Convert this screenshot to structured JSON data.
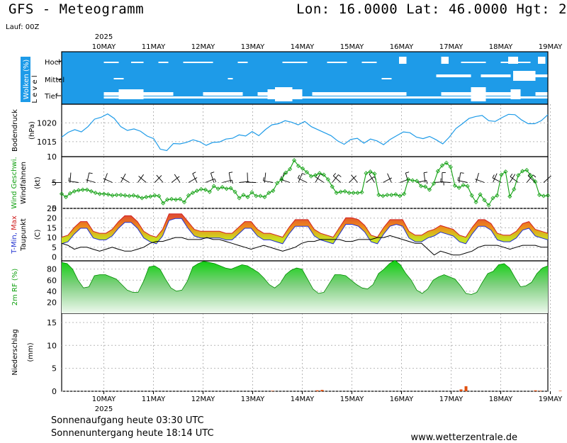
{
  "header": {
    "title": "GFS - Meteogramm",
    "coords": "Lon: 16.0000 Lat: 46.0000 Hgt: 2",
    "run": "Lauf: 00Z"
  },
  "footer": {
    "sunrise": "Sonnenaufgang heute 03:30 UTC",
    "sunset": "Sonnenuntergang heute 18:14 UTC",
    "site": "www.wetterzentrale.de"
  },
  "x_axis": {
    "year": "2025",
    "dates": [
      "10MAY",
      "11MAY",
      "12MAY",
      "13MAY",
      "14MAY",
      "15MAY",
      "16MAY",
      "17MAY",
      "18MAY",
      "19MAY"
    ]
  },
  "colors": {
    "cloud_bg": "#1e9be8",
    "pressure_line": "#1e9be8",
    "wind_line": "#10a010",
    "dewpoint_line": "#000000",
    "temp_fill_warm": "#ee8a1a",
    "temp_fill_cool": "#c8e020",
    "rh_fill": "#10d010",
    "precip_bar": "#e05010"
  },
  "chart_data": [
    {
      "type": "area",
      "panel": "clouds",
      "ylabel": "Wolken (%)",
      "level_axis_label": "L e v e l",
      "levels": [
        "Hoch",
        "Mittel",
        "Tief"
      ],
      "note": "white bands indicate cloud cover per level"
    },
    {
      "type": "line",
      "panel": "pressure",
      "ylabel": "Bodendruck (hPa)",
      "yticks": [
        1015,
        1020
      ],
      "ylim": [
        1011,
        1025
      ],
      "x": [
        0,
        3,
        6,
        9,
        12,
        15,
        18,
        21,
        24,
        27,
        30,
        33,
        36,
        39,
        42,
        45,
        48,
        51,
        54,
        57,
        60,
        63,
        66,
        69,
        72,
        75,
        78,
        81,
        84,
        87,
        90,
        93,
        96,
        99,
        102,
        105,
        108,
        111,
        114,
        117,
        120,
        123,
        126,
        129,
        132,
        135,
        138,
        141,
        144,
        147,
        150,
        153,
        156,
        159,
        162,
        165,
        168,
        171,
        174,
        177,
        180,
        183,
        186,
        189,
        192,
        195,
        198,
        201,
        204,
        207,
        210,
        213,
        216,
        219,
        222
      ],
      "values": [
        1016.2,
        1017.5,
        1018.2,
        1017.6,
        1019.0,
        1021.0,
        1021.5,
        1022.4,
        1021.2,
        1019.0,
        1018.0,
        1018.4,
        1017.8,
        1016.5,
        1015.8,
        1013.0,
        1012.6,
        1014.5,
        1014.4,
        1014.8,
        1015.5,
        1015.0,
        1014.0,
        1014.8,
        1014.9,
        1015.7,
        1015.9,
        1016.8,
        1016.5,
        1017.7,
        1016.6,
        1018.2,
        1019.5,
        1019.8,
        1020.6,
        1020.2,
        1019.5,
        1020.4,
        1019.0,
        1018.2,
        1017.4,
        1016.6,
        1015.2,
        1014.3,
        1015.6,
        1015.9,
        1014.6,
        1015.7,
        1015.2,
        1014.2,
        1015.6,
        1016.6,
        1017.6,
        1017.4,
        1016.2,
        1015.8,
        1016.4,
        1015.5,
        1014.4,
        1016.2,
        1018.5,
        1019.8,
        1021.2,
        1021.7,
        1022.0,
        1020.6,
        1020.4,
        1021.4,
        1022.3,
        1022.2,
        1020.8,
        1019.8,
        1019.8,
        1020.6,
        1022.2
      ]
    },
    {
      "type": "line",
      "panel": "wind",
      "ylabel": "Wind Geschwi.",
      "ylabel2": "Windfahnen",
      "yunit": "(kt)",
      "yticks": [
        0,
        5,
        10
      ],
      "ylim": [
        0,
        10
      ],
      "values": [
        2.8,
        2.2,
        2.9,
        3.3,
        3.5,
        3.6,
        3.6,
        3.3,
        3.0,
        2.8,
        2.8,
        2.7,
        2.5,
        2.6,
        2.6,
        2.5,
        2.4,
        2.5,
        2.3,
        2.0,
        2.2,
        2.3,
        2.5,
        2.4,
        1.0,
        1.7,
        1.8,
        1.7,
        1.8,
        1.2,
        2.5,
        3.0,
        3.4,
        3.7,
        3.6,
        3.2,
        4.3,
        3.8,
        4.1,
        3.8,
        3.9,
        3.2,
        2.0,
        2.6,
        2.2,
        3.1,
        2.4,
        2.4,
        2.2,
        3.0,
        3.4,
        4.9,
        5.6,
        6.9,
        7.6,
        9.3,
        8.2,
        7.7,
        7.0,
        6.2,
        6.4,
        6.8,
        6.5,
        5.6,
        4.2,
        3.0,
        3.2,
        3.3,
        3.0,
        3.0,
        3.0,
        3.1,
        6.8,
        7.1,
        6.7,
        2.6,
        2.4,
        2.6,
        2.6,
        2.7,
        2.4,
        2.8,
        5.6,
        5.4,
        5.3,
        4.3,
        4.2,
        3.6,
        4.8,
        7.2,
        8.3,
        8.8,
        8.0,
        4.4,
        4.0,
        4.5,
        4.3,
        2.5,
        1.2,
        2.7,
        1.6,
        0.6,
        2.0,
        2.5,
        6.5,
        7.1,
        2.3,
        3.7,
        6.4,
        7.2,
        7.4,
        6.3,
        5.2,
        2.6,
        2.4,
        2.5
      ]
    },
    {
      "type": "area",
      "panel": "temperature",
      "ylabel": "T-Min, Max",
      "ylabel2": "Taupunkt",
      "yunit": "(C)",
      "yticks": [
        0,
        5,
        10,
        15,
        20,
        25
      ],
      "ylim": [
        -2,
        25
      ],
      "series": [
        {
          "name": "T-Min",
          "values": [
            8,
            9,
            13,
            16,
            16,
            11,
            10,
            10,
            12,
            16,
            19,
            19,
            16,
            11,
            9,
            8,
            12,
            20,
            21,
            21,
            16,
            12,
            11,
            11,
            11,
            11,
            10,
            10,
            13,
            16,
            16,
            12,
            10,
            10,
            9,
            8,
            13,
            17,
            17,
            17,
            12,
            10,
            9,
            8,
            13,
            18,
            18,
            17,
            14,
            9,
            8,
            13,
            17,
            18,
            17,
            11,
            9,
            9,
            11,
            12,
            14,
            13,
            12,
            9,
            8,
            13,
            17,
            17,
            15,
            10,
            9,
            9,
            11,
            15,
            16,
            12,
            11,
            10
          ]
        },
        {
          "name": "Max",
          "values": [
            9,
            10,
            14,
            17,
            17,
            12,
            11,
            11,
            13,
            17,
            20,
            20,
            17,
            12,
            10,
            9,
            13,
            21,
            21,
            21,
            17,
            13,
            12,
            12,
            12,
            12,
            11,
            11,
            14,
            17,
            17,
            13,
            11,
            11,
            10,
            9,
            14,
            18,
            18,
            18,
            13,
            11,
            10,
            9,
            14,
            19,
            19,
            18,
            15,
            10,
            9,
            14,
            18,
            18,
            18,
            12,
            10,
            10,
            12,
            13,
            15,
            14,
            13,
            10,
            9,
            14,
            18,
            18,
            16,
            11,
            10,
            10,
            12,
            16,
            17,
            13,
            12,
            11
          ]
        },
        {
          "name": "Taupunkt",
          "values": [
            7,
            6,
            4,
            5,
            5,
            4,
            3,
            4,
            5,
            4,
            3,
            3,
            4,
            5,
            7,
            8,
            8,
            9,
            10,
            10,
            9,
            9,
            9,
            10,
            9,
            9,
            8,
            7,
            6,
            5,
            4,
            5,
            6,
            5,
            4,
            3,
            4,
            5,
            7,
            8,
            8,
            9,
            9,
            9,
            9,
            8,
            8,
            9,
            9,
            9,
            10,
            10,
            11,
            10,
            9,
            8,
            7,
            7,
            4,
            1,
            3,
            2,
            1,
            1,
            2,
            3,
            5,
            6,
            6,
            6,
            5,
            4,
            5,
            6,
            6,
            6,
            5,
            5
          ]
        }
      ]
    },
    {
      "type": "area",
      "panel": "humidity",
      "ylabel": "2m RF (%)",
      "yticks": [
        20,
        40,
        60,
        80
      ],
      "ylim": [
        0,
        95
      ],
      "values": [
        92,
        90,
        80,
        60,
        46,
        48,
        68,
        70,
        70,
        66,
        62,
        52,
        42,
        38,
        38,
        58,
        84,
        86,
        80,
        62,
        46,
        40,
        42,
        58,
        84,
        90,
        94,
        92,
        90,
        86,
        82,
        80,
        84,
        88,
        86,
        80,
        74,
        64,
        52,
        46,
        54,
        70,
        78,
        82,
        80,
        62,
        44,
        36,
        38,
        54,
        70,
        70,
        68,
        60,
        52,
        46,
        44,
        52,
        72,
        80,
        90,
        96,
        88,
        72,
        60,
        42,
        36,
        44,
        60,
        66,
        70,
        66,
        62,
        50,
        36,
        34,
        38,
        56,
        72,
        76,
        88,
        90,
        82,
        64,
        48,
        50,
        56,
        72,
        82,
        86
      ]
    },
    {
      "type": "bar",
      "panel": "precipitation",
      "ylabel": "Niederschlag (mm)",
      "yticks": [
        0,
        5,
        10,
        15
      ],
      "ylim": [
        0,
        17
      ],
      "x_day": [
        3.4,
        4.3,
        4.4,
        7.2,
        7.3,
        8.7,
        8.8,
        9.2
      ],
      "values": [
        0.1,
        0.2,
        0.3,
        0.4,
        1.1,
        0.2,
        0.1,
        0.1
      ]
    }
  ]
}
